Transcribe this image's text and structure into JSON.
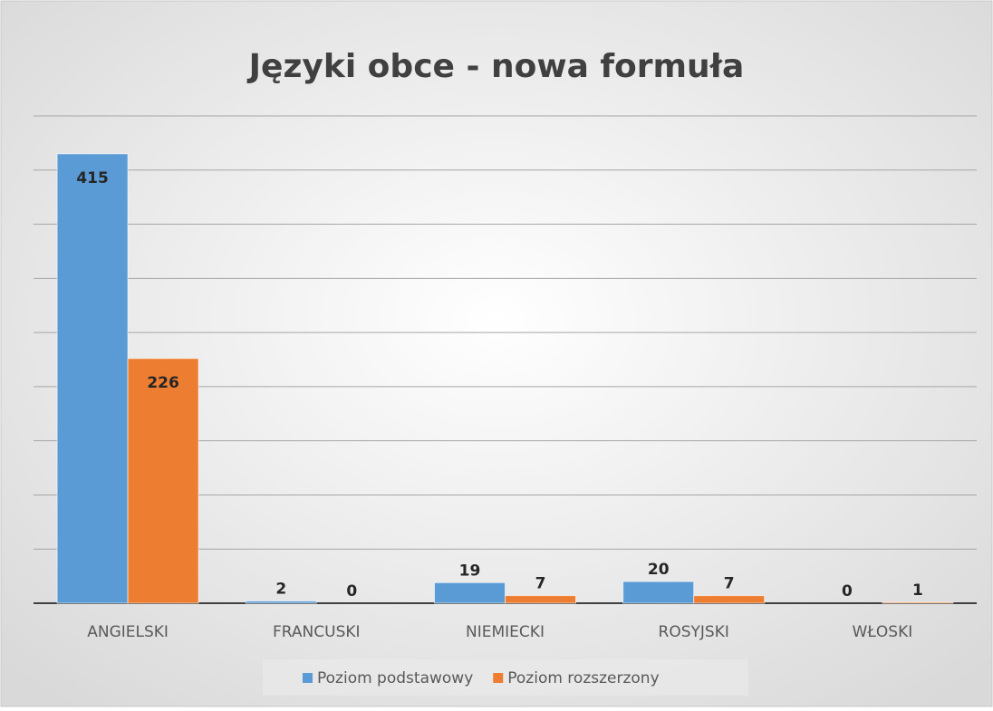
{
  "chart_data": {
    "type": "bar",
    "title": "Języki  obce - nowa formuła",
    "categories": [
      "ANGIELSKI",
      "FRANCUSKI",
      "NIEMIECKI",
      "ROSYJSKI",
      "WŁOSKI"
    ],
    "series": [
      {
        "name": "Poziom podstawowy",
        "color": "#5b9bd5",
        "values": [
          415,
          2,
          19,
          20,
          0
        ]
      },
      {
        "name": "Poziom rozszerzony",
        "color": "#ed7d31",
        "values": [
          226,
          0,
          7,
          7,
          1
        ]
      }
    ],
    "ylim": [
      0,
      450
    ],
    "yticks": [
      0,
      50,
      100,
      150,
      200,
      250,
      300,
      350,
      400,
      450
    ],
    "grid": true,
    "legend": "bottom"
  }
}
